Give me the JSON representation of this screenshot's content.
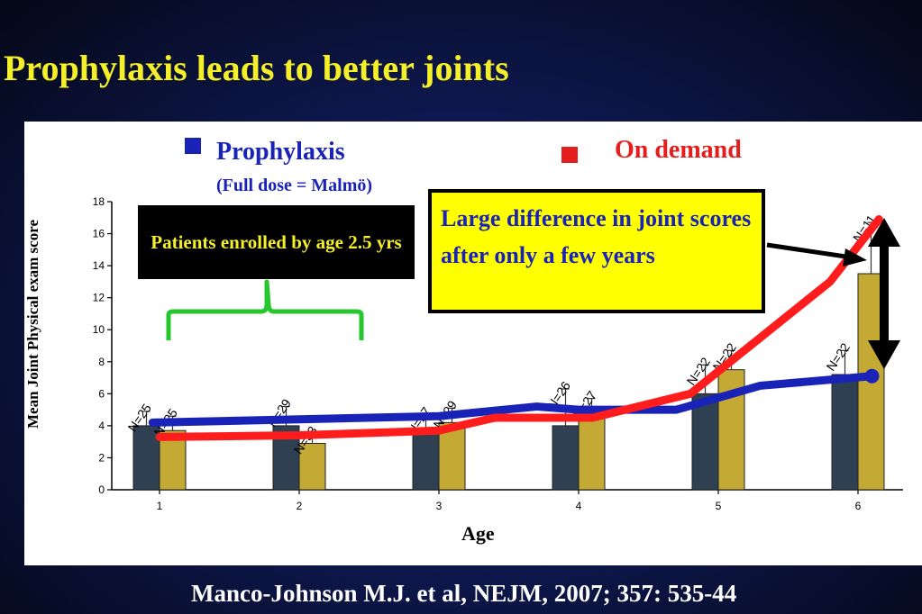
{
  "title": "Prophylaxis leads to better joints",
  "legend": {
    "prophylaxis_label": "Prophylaxis",
    "prophylaxis_sub": "(Full dose = Malmö)",
    "on_demand_label": "On demand",
    "prophylaxis_color": "#1a23b8",
    "on_demand_color": "#e41d1d"
  },
  "annotations": {
    "enrolled": "Patients enrolled by age 2.5 yrs",
    "difference": "Large difference in joint scores after only a few years"
  },
  "citation": "Manco-Johnson M.J. et al, NEJM, 2007; 357: 535-44",
  "chart_data": {
    "type": "bar",
    "xlabel": "Age",
    "ylabel": "Mean Joint Physical exam score",
    "categories": [
      "1",
      "2",
      "3",
      "4",
      "5",
      "6"
    ],
    "ylim": [
      0,
      18
    ],
    "yticks": [
      0,
      2,
      4,
      6,
      8,
      10,
      12,
      14,
      16,
      18
    ],
    "series": [
      {
        "values": [
          4.0,
          4.0,
          3.8,
          4.0,
          6.0,
          7.2
        ],
        "errors": [
          0.9,
          1.2,
          0.9,
          2.3,
          1.8,
          1.5
        ],
        "n_labels": [
          "N=25",
          "N=29",
          "N=27",
          "N=26",
          "N=22",
          "N=22"
        ],
        "color": "#2e4052"
      },
      {
        "values": [
          3.7,
          2.9,
          4.2,
          4.5,
          7.5,
          13.5
        ],
        "errors": [
          0.9,
          0.6,
          0.9,
          1.2,
          1.2,
          3.2
        ],
        "n_labels": [
          "N=25",
          "N=33",
          "N=29",
          "N=27",
          "N=22",
          "N=11"
        ],
        "color": "#c4a935"
      }
    ],
    "trend_lines": [
      {
        "name": "Prophylaxis",
        "color": "#1a23b8",
        "x": [
          0.95,
          2,
          3,
          3.7,
          4,
          4.7,
          5.3,
          6.1
        ],
        "y": [
          4.2,
          4.4,
          4.6,
          5.2,
          5.0,
          5.0,
          6.5,
          7.1
        ]
      },
      {
        "name": "On demand",
        "color": "#ff1c1c",
        "x": [
          1.0,
          2,
          3,
          3.4,
          4.1,
          4.8,
          5.3,
          5.8,
          6.15
        ],
        "y": [
          3.3,
          3.4,
          3.7,
          4.5,
          4.5,
          6.0,
          9.5,
          13.0,
          16.9
        ]
      }
    ]
  }
}
